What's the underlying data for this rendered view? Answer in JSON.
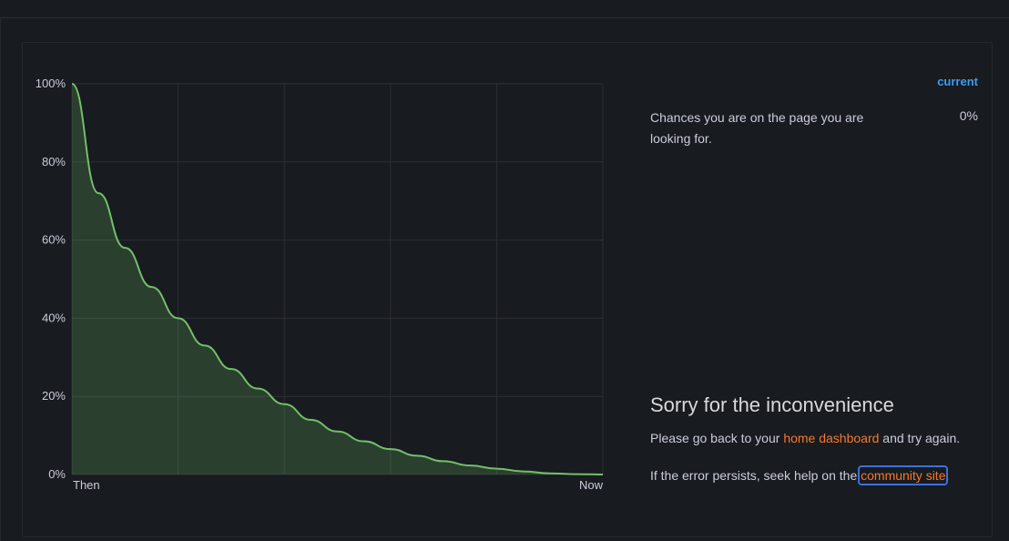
{
  "chart_data": {
    "type": "area",
    "x_labels": [
      "Then",
      "Now"
    ],
    "y_ticks": [
      "0%",
      "20%",
      "40%",
      "60%",
      "80%",
      "100%"
    ],
    "ylim": [
      0,
      100
    ],
    "grid": true,
    "series": [
      {
        "x": [
          0,
          0.05,
          0.1,
          0.15,
          0.2,
          0.25,
          0.3,
          0.35,
          0.4,
          0.45,
          0.5,
          0.55,
          0.6,
          0.65,
          0.7,
          0.75,
          0.8,
          0.85,
          0.9,
          0.95,
          1.0
        ],
        "values": [
          100,
          72,
          58,
          48,
          40,
          33,
          27,
          22,
          18,
          14,
          11,
          8.5,
          6.5,
          4.8,
          3.4,
          2.3,
          1.5,
          0.8,
          0.3,
          0.1,
          0
        ],
        "color": "#73bf69"
      }
    ]
  },
  "legend": {
    "header": "current",
    "row_label": "Chances you are on the page you are looking for.",
    "row_value": "0%"
  },
  "message": {
    "title": "Sorry for the inconvenience",
    "line1_pre": "Please go back to your ",
    "line1_link": "home dashboard",
    "line1_post": " and try again.",
    "line2_pre": "If the error persists, seek help on the ",
    "line2_link": "community site",
    "line2_post": "."
  },
  "colors": {
    "background": "#181b1f",
    "series": "#73bf69",
    "link": "#f6782c",
    "legend_header": "#3d9cf2"
  }
}
